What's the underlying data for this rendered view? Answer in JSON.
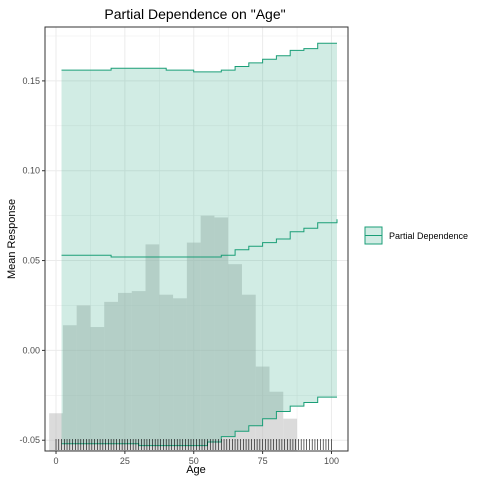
{
  "chart_data": {
    "type": "line",
    "title": "Partial Dependence on \"Age\"",
    "xlabel": "Age",
    "ylabel": "Mean Response",
    "xlim": [
      -4,
      106
    ],
    "ylim": [
      -0.056,
      0.18
    ],
    "xticks": [
      0,
      25,
      50,
      75,
      100
    ],
    "xtick_labels": [
      "0",
      "25",
      "50",
      "75",
      "100"
    ],
    "yticks": [
      -0.05,
      0.0,
      0.05,
      0.1,
      0.15
    ],
    "ytick_labels": [
      "-0.05",
      "0.00",
      "0.05",
      "0.10",
      "0.15"
    ],
    "grid": true,
    "legend_position": "right",
    "colors": {
      "line": "#1a9e77",
      "band": "#1a9e77",
      "histogram": "#bebebe",
      "rug": "#000000",
      "grid": "#ebebeb",
      "panel_border": "#333333"
    },
    "series": [
      {
        "name": "Partial Dependence",
        "x": [
          2,
          10,
          20,
          30,
          40,
          50,
          55,
          60,
          65,
          70,
          75,
          80,
          85,
          90,
          95,
          102
        ],
        "mean": [
          0.053,
          0.053,
          0.052,
          0.052,
          0.052,
          0.052,
          0.052,
          0.053,
          0.056,
          0.058,
          0.06,
          0.062,
          0.066,
          0.068,
          0.071,
          0.073
        ],
        "upper": [
          0.156,
          0.156,
          0.157,
          0.157,
          0.156,
          0.155,
          0.155,
          0.156,
          0.158,
          0.16,
          0.162,
          0.164,
          0.167,
          0.168,
          0.171,
          0.171
        ],
        "lower": [
          -0.052,
          -0.052,
          -0.052,
          -0.053,
          -0.053,
          -0.053,
          -0.051,
          -0.048,
          -0.045,
          -0.042,
          -0.038,
          -0.034,
          -0.031,
          -0.029,
          -0.026,
          -0.026
        ]
      }
    ],
    "histogram": {
      "bin_width": 5,
      "bin_starts": [
        -2.5,
        2.5,
        7.5,
        12.5,
        17.5,
        22.5,
        27.5,
        32.5,
        37.5,
        42.5,
        47.5,
        52.5,
        57.5,
        62.5,
        67.5,
        72.5,
        77.5,
        82.5
      ],
      "heights": [
        -0.035,
        0.014,
        0.025,
        0.013,
        0.027,
        0.032,
        0.033,
        0.059,
        0.031,
        0.029,
        0.06,
        0.075,
        0.074,
        0.048,
        0.031,
        -0.009,
        -0.023,
        -0.038
      ]
    },
    "rug": {
      "x_from": 0,
      "x_to": 100,
      "step": 1
    }
  }
}
